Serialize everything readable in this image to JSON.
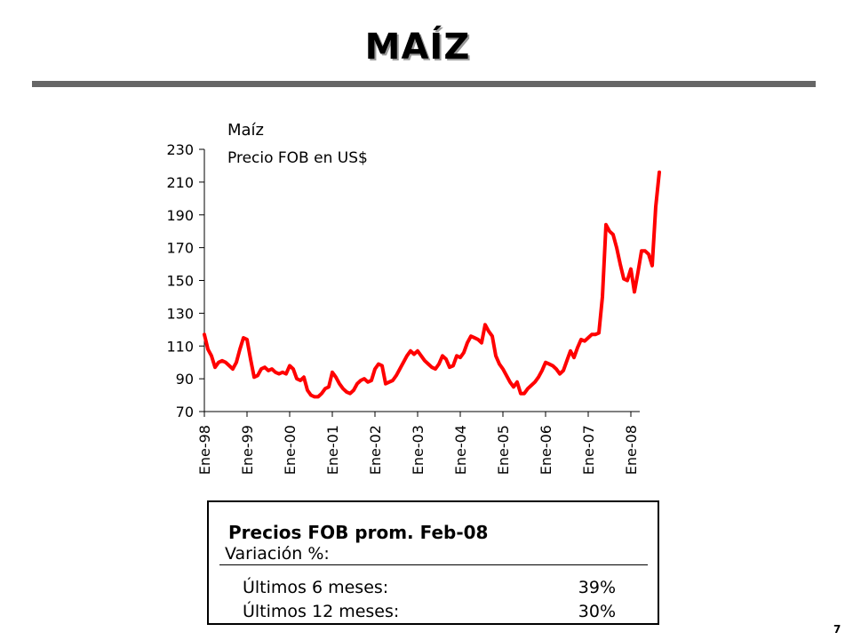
{
  "slide": {
    "title": "MAÍZ",
    "page_number": "7"
  },
  "colors": {
    "line": "#ff0000",
    "title_rule": "#666666",
    "axis": "#000000"
  },
  "chart_data": {
    "type": "line",
    "title": "Maíz",
    "subtitle": "Precio FOB en US$",
    "xlabel": "",
    "ylabel": "",
    "ylim": [
      70,
      230
    ],
    "yticks": [
      70,
      90,
      110,
      130,
      150,
      170,
      190,
      210,
      230
    ],
    "xticks": [
      "Ene-98",
      "Ene-99",
      "Ene-00",
      "Ene-01",
      "Ene-02",
      "Ene-03",
      "Ene-04",
      "Ene-05",
      "Ene-06",
      "Ene-07",
      "Ene-08"
    ],
    "grid": false,
    "legend": "none",
    "series": [
      {
        "x_start": "Ene-98",
        "frequency": "monthly",
        "values": [
          117,
          108,
          104,
          97,
          100,
          101,
          100,
          98,
          96,
          100,
          108,
          115,
          114,
          102,
          91,
          92,
          96,
          97,
          95,
          96,
          94,
          93,
          94,
          93,
          98,
          96,
          90,
          89,
          91,
          83,
          80,
          79,
          79,
          81,
          84,
          85,
          94,
          91,
          87,
          84,
          82,
          81,
          83,
          87,
          89,
          90,
          88,
          89,
          96,
          99,
          98,
          87,
          88,
          89,
          92,
          96,
          100,
          104,
          107,
          105,
          107,
          104,
          101,
          99,
          97,
          96,
          99,
          104,
          102,
          97,
          98,
          104,
          103,
          106,
          112,
          116,
          115,
          114,
          112,
          123,
          119,
          116,
          104,
          99,
          96,
          92,
          88,
          85,
          88,
          81,
          81,
          84,
          86,
          88,
          91,
          95,
          100,
          99,
          98,
          96,
          93,
          95,
          101,
          107,
          103,
          109,
          114,
          113,
          115,
          117,
          117,
          118,
          140,
          184,
          180,
          178,
          170,
          160,
          151,
          150,
          157,
          143,
          155,
          168,
          168,
          166,
          159,
          195,
          216
        ]
      }
    ]
  },
  "info_box": {
    "heading": "Precios FOB prom. Feb-08",
    "subheading": "Variación %:",
    "rows": [
      {
        "label": "Últimos 6 meses:",
        "value": "39%"
      },
      {
        "label": "Últimos 12 meses:",
        "value": "30%"
      }
    ]
  }
}
